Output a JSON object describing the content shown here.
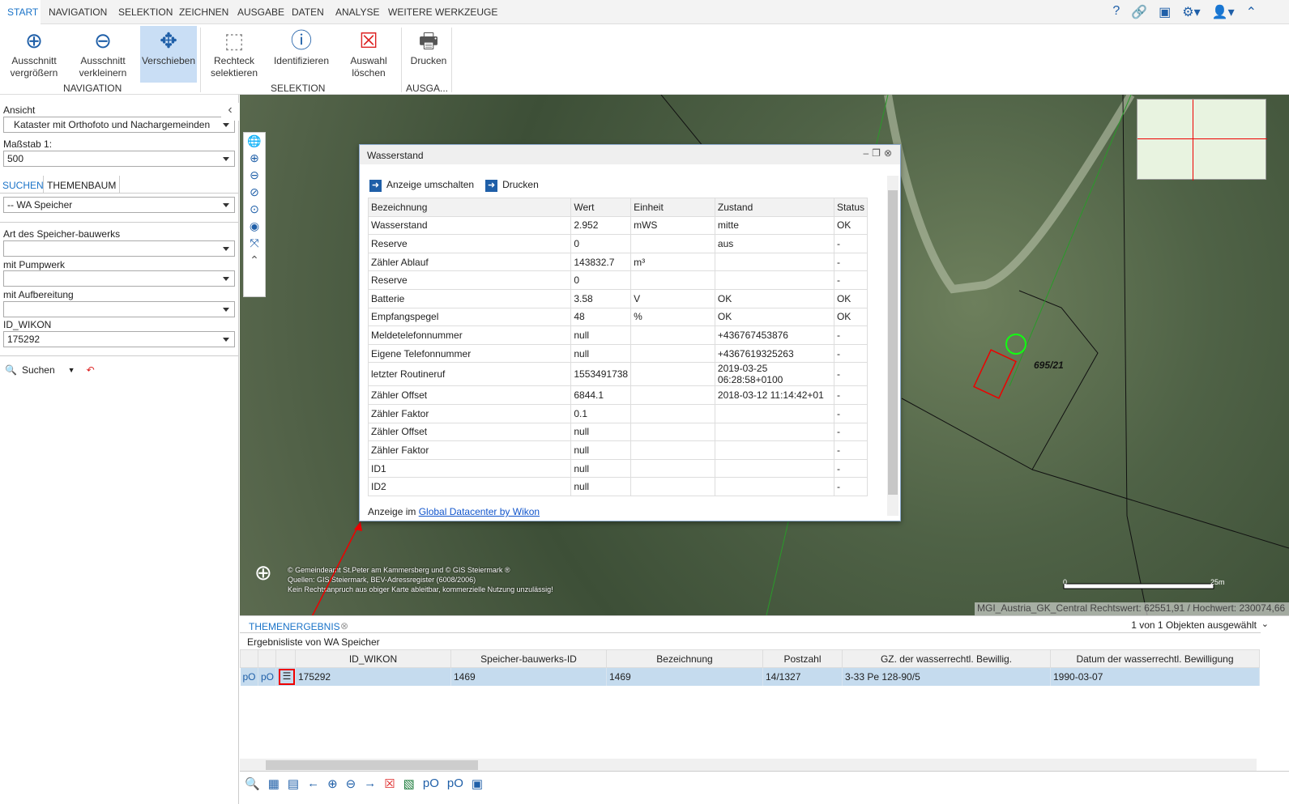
{
  "menu": {
    "tabs": [
      "START",
      "NAVIGATION",
      "SELEKTION",
      "ZEICHNEN",
      "AUSGABE",
      "DATEN",
      "ANALYSE",
      "WEITERE WERKZEUGE"
    ],
    "active": "START"
  },
  "ribbon": {
    "buttons": [
      {
        "label1": "Ausschnitt",
        "label2": "vergrößern",
        "icon": "zoom-in-icon"
      },
      {
        "label1": "Ausschnitt",
        "label2": "verkleinern",
        "icon": "zoom-out-icon"
      },
      {
        "label1": "Verschieben",
        "label2": "",
        "icon": "move-icon"
      },
      {
        "label1": "Rechteck",
        "label2": "selektieren",
        "icon": "rectangle-select-icon"
      },
      {
        "label1": "Identifizieren",
        "label2": "",
        "icon": "info-icon"
      },
      {
        "label1": "Auswahl",
        "label2": "löschen",
        "icon": "clear-selection-icon"
      },
      {
        "label1": "Drucken",
        "label2": "",
        "icon": "print-icon"
      }
    ],
    "groups": [
      "NAVIGATION",
      "SELEKTION",
      "AUSGA..."
    ]
  },
  "left": {
    "ansicht_label": "Ansicht",
    "ansicht_value": "Kataster mit Orthofoto und Nachargemeinden",
    "massstab_label": "Maßstab 1:",
    "massstab_value": "500",
    "tabs": [
      "SUCHEN",
      "THEMENBAUM"
    ],
    "theme_value": "-- WA Speicher",
    "fields": [
      {
        "label": "Art des Speicher-bauwerks",
        "value": ""
      },
      {
        "label": "mit Pumpwerk",
        "value": ""
      },
      {
        "label": "mit Aufbereitung",
        "value": ""
      },
      {
        "label": "ID_WIKON",
        "value": "175292"
      }
    ],
    "search_label": "Suchen"
  },
  "dialog": {
    "title": "Wasserstand",
    "link1": "Anzeige umschalten",
    "link2": "Drucken",
    "headers": [
      "Bezeichnung",
      "Wert",
      "Einheit",
      "Zustand",
      "Status"
    ],
    "rows": [
      [
        "Wasserstand",
        "2.952",
        "mWS",
        "mitte",
        "OK"
      ],
      [
        "Reserve",
        "0",
        "",
        "aus",
        "-"
      ],
      [
        "Zähler Ablauf",
        "143832.7",
        "m³",
        "",
        "-"
      ],
      [
        "Reserve",
        "0",
        "",
        "",
        "-"
      ],
      [
        "Batterie",
        "3.58",
        "V",
        "OK",
        "OK"
      ],
      [
        "Empfangspegel",
        "48",
        "%",
        "OK",
        "OK"
      ],
      [
        "Meldetelefonnummer",
        "null",
        "",
        "+436767453876",
        "-"
      ],
      [
        "Eigene Telefonnummer",
        "null",
        "",
        "+4367619325263",
        "-"
      ],
      [
        "letzter Routineruf",
        "1553491738",
        "",
        "2019-03-25 06:28:58+0100",
        "-"
      ],
      [
        "Zähler Offset",
        "6844.1",
        "",
        "2018-03-12 11:14:42+01",
        "-"
      ],
      [
        "Zähler Faktor",
        "0.1",
        "",
        "",
        "-"
      ],
      [
        "Zähler Offset",
        "null",
        "",
        "",
        "-"
      ],
      [
        "Zähler Faktor",
        "null",
        "",
        "",
        "-"
      ],
      [
        "ID1",
        "null",
        "",
        "",
        "-"
      ],
      [
        "ID2",
        "null",
        "",
        "",
        "-"
      ]
    ],
    "footer_prefix": "Anzeige im ",
    "footer_link": "Global Datacenter by Wikon"
  },
  "map": {
    "parcel_label": "695/21",
    "attribution": [
      "© Gemeindeamt St.Peter am Kammersberg und © GIS Steiermark ®",
      "Quellen: GIS Steiermark, BEV-Adressregister (6008/2006)",
      "Kein Rechtsanpruch aus obiger Karte ableitbar, kommerzielle Nutzung unzulässig!"
    ],
    "scale_start": "0",
    "scale_end": "25m",
    "coords": "MGI_Austria_GK_Central Rechtswert: 62551,91 / Hochwert: 230074,66"
  },
  "results": {
    "tab": "THEMENERGEBNIS",
    "selected": "1 von 1 Objekten ausgewählt",
    "subtitle": "Ergebnisliste von WA Speicher",
    "headers": [
      "ID_WIKON",
      "Speicher-bauwerks-ID",
      "Bezeichnung",
      "Postzahl",
      "GZ. der wasserrechtl. Bewillig.",
      "Datum der wasserrechtl. Bewilligung"
    ],
    "row": [
      "175292",
      "1469",
      "1469",
      "14/1327",
      "3-33 Pe 128-90/5",
      "1990-03-07"
    ]
  }
}
